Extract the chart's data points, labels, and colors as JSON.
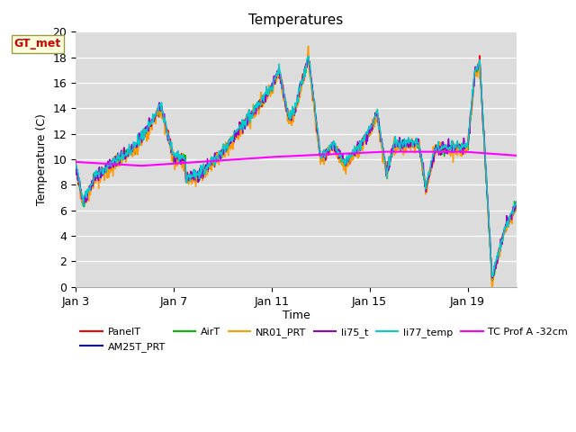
{
  "title": "Temperatures",
  "xlabel": "Time",
  "ylabel": "Temperature (C)",
  "ylim": [
    0,
    20
  ],
  "x_ticks": [
    3,
    7,
    11,
    15,
    19
  ],
  "x_tick_labels": [
    "Jan 3",
    "Jan 7",
    "Jan 11",
    "Jan 15",
    "Jan 19"
  ],
  "annotation_text": "GT_met",
  "annotation_color": "#cc0000",
  "annotation_bg": "#ffffdd",
  "annotation_edge": "#999944",
  "bg_color": "#dcdcdc",
  "series": {
    "PanelT": {
      "color": "#ff0000",
      "lw": 1.0
    },
    "AM25T_PRT": {
      "color": "#0000cc",
      "lw": 1.0
    },
    "AirT": {
      "color": "#00bb00",
      "lw": 1.0
    },
    "NR01_PRT": {
      "color": "#ff9900",
      "lw": 1.0
    },
    "li75_t": {
      "color": "#9900cc",
      "lw": 1.0
    },
    "li77_temp": {
      "color": "#00cccc",
      "lw": 1.0
    },
    "TC Prof A -32cm": {
      "color": "#ff00ff",
      "lw": 1.5
    }
  },
  "legend_ncol": 6,
  "legend_row1": [
    "PanelT",
    "AM25T_PRT",
    "AirT",
    "NR01_PRT",
    "li75_t",
    "li77_temp"
  ],
  "legend_row2": [
    "TC Prof A -32cm"
  ]
}
